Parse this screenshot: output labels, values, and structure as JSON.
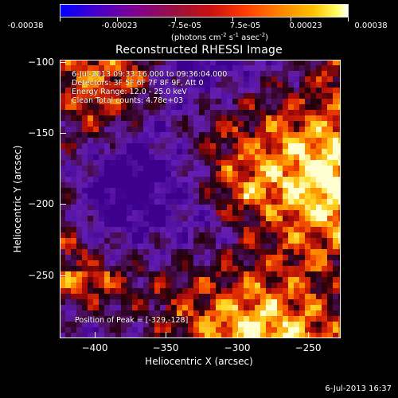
{
  "colorbar": {
    "tick_labels": [
      "-0.00038",
      "-0.00023",
      "-7.5e-05",
      "7.5e-05",
      "0.00023",
      "0.00038"
    ],
    "units_prefix": "(photons cm",
    "units_exp1": "-2",
    "units_mid1": " s",
    "units_exp2": "-1",
    "units_mid2": " asec",
    "units_exp3": "-2",
    "units_suffix": ")"
  },
  "title": "Reconstructed RHESSI Image",
  "info": {
    "time_range": "6-Jul-2013 09:33:16.000 to 09:36:04.000",
    "detectors": "Detectors: 3F 5F 6F 7F 8F 9F, Att 0",
    "energy_range": "Energy Range: 12.0 - 25.0 keV",
    "clean_counts": "Clean    Total counts: 4.78e+03",
    "peak": "Position of Peak = [-329,-128]"
  },
  "chart_data": {
    "type": "heatmap",
    "title": "Reconstructed RHESSI Image",
    "xlabel": "Heliocentric X (arcsec)",
    "ylabel": "Heliocentric Y (arcsec)",
    "xlim": [
      -425,
      -228
    ],
    "ylim": [
      -295,
      -97
    ],
    "x_ticks": [
      -400,
      -350,
      -300,
      -250
    ],
    "y_ticks": [
      -100,
      -150,
      -200,
      -250
    ],
    "x_tick_labels": [
      "−400",
      "−350",
      "−300",
      "−250"
    ],
    "y_tick_labels": [
      "−100",
      "−150",
      "−200",
      "−250"
    ],
    "color_range": [
      -0.00038,
      0.00038
    ],
    "colormap": "red-yellow-white on blue-purple",
    "peak_position": [
      -329,
      -128
    ],
    "grid": false
  },
  "footer": {
    "date": "6-Jul-2013 16:37"
  },
  "colors": {
    "background": "#000000",
    "text": "#ffffff"
  }
}
